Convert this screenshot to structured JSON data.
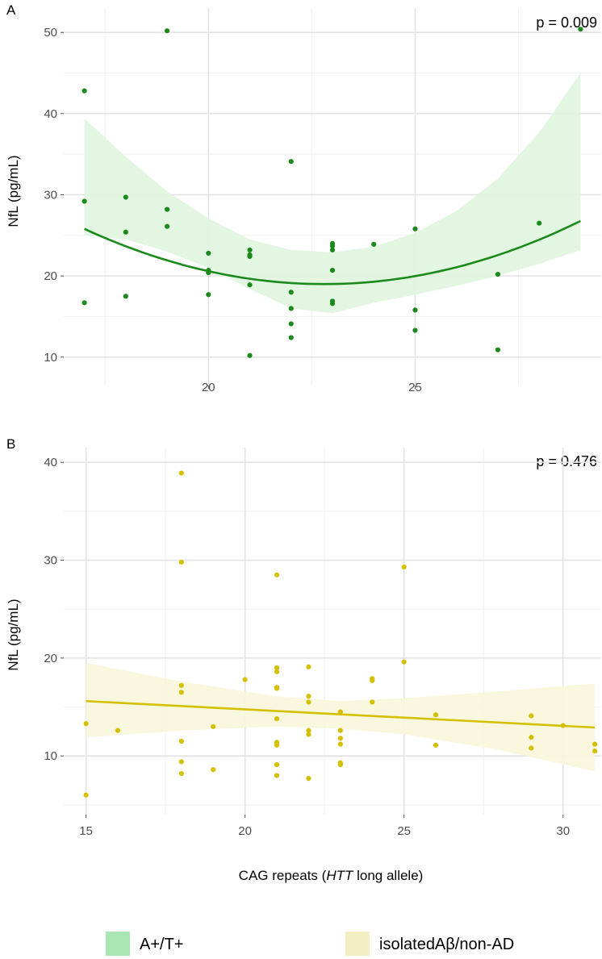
{
  "chart_data": [
    {
      "panel": "A",
      "type": "scatter",
      "title": "",
      "p_value": "p = 0.009",
      "xlabel": "",
      "ylabel": "NfL (pg/mL)",
      "xlim": [
        16.5,
        29.5
      ],
      "ylim": [
        6.5,
        53
      ],
      "x_ticks": [
        20,
        25
      ],
      "x_tick_labels": [
        "20",
        "25"
      ],
      "y_ticks": [
        10,
        20,
        30,
        40,
        50
      ],
      "y_tick_labels": [
        "10",
        "20",
        "30",
        "40",
        "50"
      ],
      "color": "#1a8a1a",
      "band_color": "#dff5df",
      "fit": {
        "kind": "quadratic",
        "coef": [
          0.2022,
          22.8,
          19.0
        ],
        "x_range": [
          17,
          29
        ]
      },
      "band": {
        "x": [
          17,
          18,
          19,
          20,
          21,
          22,
          23,
          24,
          25,
          26,
          27,
          28,
          29
        ],
        "upper": [
          39.4,
          34.7,
          30.4,
          27.1,
          24.5,
          23.2,
          22.9,
          23.6,
          25.3,
          28.0,
          32.0,
          37.7,
          45.0
        ],
        "lower": [
          25.0,
          24.5,
          23.0,
          21.0,
          18.4,
          16.0,
          15.4,
          16.7,
          17.7,
          18.8,
          20.0,
          21.5,
          23.2
        ]
      },
      "series": [
        {
          "name": "A+/T+",
          "points": [
            [
              17,
              42.8
            ],
            [
              17,
              29.2
            ],
            [
              17,
              16.7
            ],
            [
              18,
              29.7
            ],
            [
              18,
              25.4
            ],
            [
              18,
              17.5
            ],
            [
              19,
              50.2
            ],
            [
              19,
              28.2
            ],
            [
              19,
              26.1
            ],
            [
              20,
              22.8
            ],
            [
              20,
              20.7
            ],
            [
              20,
              20.4
            ],
            [
              20,
              17.7
            ],
            [
              21,
              23.2
            ],
            [
              21,
              22.6
            ],
            [
              21,
              22.4
            ],
            [
              21,
              18.9
            ],
            [
              21,
              10.2
            ],
            [
              22,
              34.1
            ],
            [
              22,
              18.0
            ],
            [
              22,
              16.0
            ],
            [
              22,
              14.1
            ],
            [
              22,
              12.4
            ],
            [
              23,
              24.0
            ],
            [
              23,
              23.7
            ],
            [
              23,
              23.2
            ],
            [
              23,
              20.7
            ],
            [
              23,
              16.9
            ],
            [
              23,
              16.6
            ],
            [
              24,
              23.9
            ],
            [
              25,
              25.8
            ],
            [
              25,
              15.8
            ],
            [
              25,
              13.3
            ],
            [
              27,
              20.2
            ],
            [
              27,
              10.9
            ],
            [
              28,
              26.5
            ],
            [
              29,
              50.4
            ]
          ]
        }
      ]
    },
    {
      "panel": "B",
      "type": "scatter",
      "title": "",
      "p_value": "p = 0.476",
      "xlabel": "CAG repeats (HTT long allele)",
      "ylabel": "NfL (pg/mL)",
      "xlim": [
        14.3,
        31.2
      ],
      "ylim": [
        4,
        41.5
      ],
      "x_ticks": [
        15,
        20,
        25,
        30
      ],
      "x_tick_labels": [
        "15",
        "20",
        "25",
        "30"
      ],
      "y_ticks": [
        10,
        20,
        30,
        40
      ],
      "y_tick_labels": [
        "10",
        "20",
        "30",
        "40"
      ],
      "color": "#d4c000",
      "band_color": "#faf6dc",
      "fit": {
        "kind": "linear",
        "start": [
          15,
          15.6
        ],
        "end": [
          31,
          12.9
        ]
      },
      "band": {
        "x": [
          15,
          18,
          21,
          23,
          25,
          28,
          31
        ],
        "upper": [
          19.5,
          17.6,
          16.1,
          15.6,
          15.9,
          16.6,
          17.4
        ],
        "lower": [
          11.9,
          12.6,
          13.0,
          12.8,
          12.2,
          10.6,
          8.4
        ]
      },
      "series": [
        {
          "name": "isolatedAβ/non-AD",
          "points": [
            [
              15,
              13.3
            ],
            [
              15,
              6.0
            ],
            [
              16,
              12.6
            ],
            [
              18,
              38.9
            ],
            [
              18,
              29.8
            ],
            [
              18,
              17.2
            ],
            [
              18,
              16.5
            ],
            [
              18,
              11.5
            ],
            [
              18,
              9.4
            ],
            [
              18,
              8.2
            ],
            [
              19,
              13.0
            ],
            [
              19,
              8.6
            ],
            [
              20,
              17.8
            ],
            [
              21,
              28.5
            ],
            [
              21,
              19.0
            ],
            [
              21,
              18.6
            ],
            [
              21,
              17.0
            ],
            [
              21,
              16.9
            ],
            [
              21,
              13.8
            ],
            [
              21,
              11.4
            ],
            [
              21,
              11.1
            ],
            [
              21,
              9.1
            ],
            [
              21,
              8.0
            ],
            [
              22,
              19.1
            ],
            [
              22,
              16.1
            ],
            [
              22,
              15.5
            ],
            [
              22,
              12.6
            ],
            [
              22,
              12.2
            ],
            [
              22,
              7.7
            ],
            [
              23,
              14.5
            ],
            [
              23,
              12.6
            ],
            [
              23,
              11.8
            ],
            [
              23,
              11.2
            ],
            [
              23,
              9.3
            ],
            [
              23,
              9.1
            ],
            [
              24,
              17.9
            ],
            [
              24,
              17.7
            ],
            [
              24,
              15.5
            ],
            [
              25,
              29.3
            ],
            [
              25,
              19.6
            ],
            [
              26,
              14.2
            ],
            [
              26,
              11.1
            ],
            [
              29,
              14.1
            ],
            [
              29,
              11.9
            ],
            [
              29,
              10.8
            ],
            [
              30,
              13.1
            ],
            [
              31,
              11.2
            ],
            [
              31,
              10.5
            ]
          ]
        }
      ]
    }
  ],
  "x_axis_title": {
    "before": "CAG repeats (",
    "italic": "HTT",
    "after": " long allele)"
  },
  "legend": [
    {
      "label": "A+/T+",
      "color": "#a8e6b4"
    },
    {
      "label": "isolatedAβ/non-AD",
      "color": "#f3efc2"
    }
  ]
}
